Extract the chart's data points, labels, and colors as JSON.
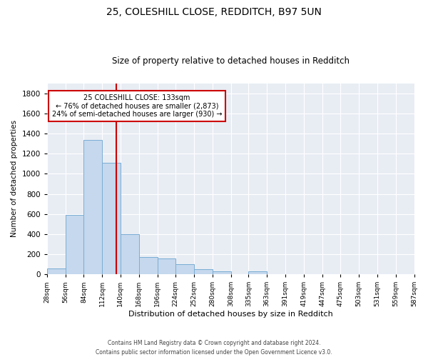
{
  "title_line1": "25, COLESHILL CLOSE, REDDITCH, B97 5UN",
  "title_line2": "Size of property relative to detached houses in Redditch",
  "xlabel": "Distribution of detached houses by size in Redditch",
  "ylabel": "Number of detached properties",
  "footnote": "Contains HM Land Registry data © Crown copyright and database right 2024.\nContains public sector information licensed under the Open Government Licence v3.0.",
  "bar_color": "#c5d8ed",
  "bar_edge_color": "#7aadd4",
  "background_color": "#e8edf4",
  "annotation_box_color": "#cc0000",
  "vline_color": "#cc0000",
  "annotation_text_line1": "25 COLESHILL CLOSE: 133sqm",
  "annotation_text_line2": "← 76% of detached houses are smaller (2,873)",
  "annotation_text_line3": "24% of semi-detached houses are larger (930) →",
  "property_size": 133,
  "bin_edges": [
    28,
    56,
    84,
    112,
    140,
    168,
    196,
    224,
    252,
    280,
    308,
    335,
    363,
    391,
    419,
    447,
    475,
    503,
    531,
    559,
    587
  ],
  "bin_labels": [
    "28sqm",
    "56sqm",
    "84sqm",
    "112sqm",
    "140sqm",
    "168sqm",
    "196sqm",
    "224sqm",
    "252sqm",
    "280sqm",
    "308sqm",
    "335sqm",
    "363sqm",
    "391sqm",
    "419sqm",
    "447sqm",
    "475sqm",
    "503sqm",
    "531sqm",
    "559sqm",
    "587sqm"
  ],
  "bar_heights": [
    60,
    590,
    1340,
    1110,
    400,
    170,
    155,
    100,
    50,
    30,
    0,
    30,
    0,
    0,
    0,
    0,
    0,
    0,
    0,
    0
  ],
  "ylim": [
    0,
    1900
  ],
  "yticks": [
    0,
    200,
    400,
    600,
    800,
    1000,
    1200,
    1400,
    1600,
    1800
  ]
}
